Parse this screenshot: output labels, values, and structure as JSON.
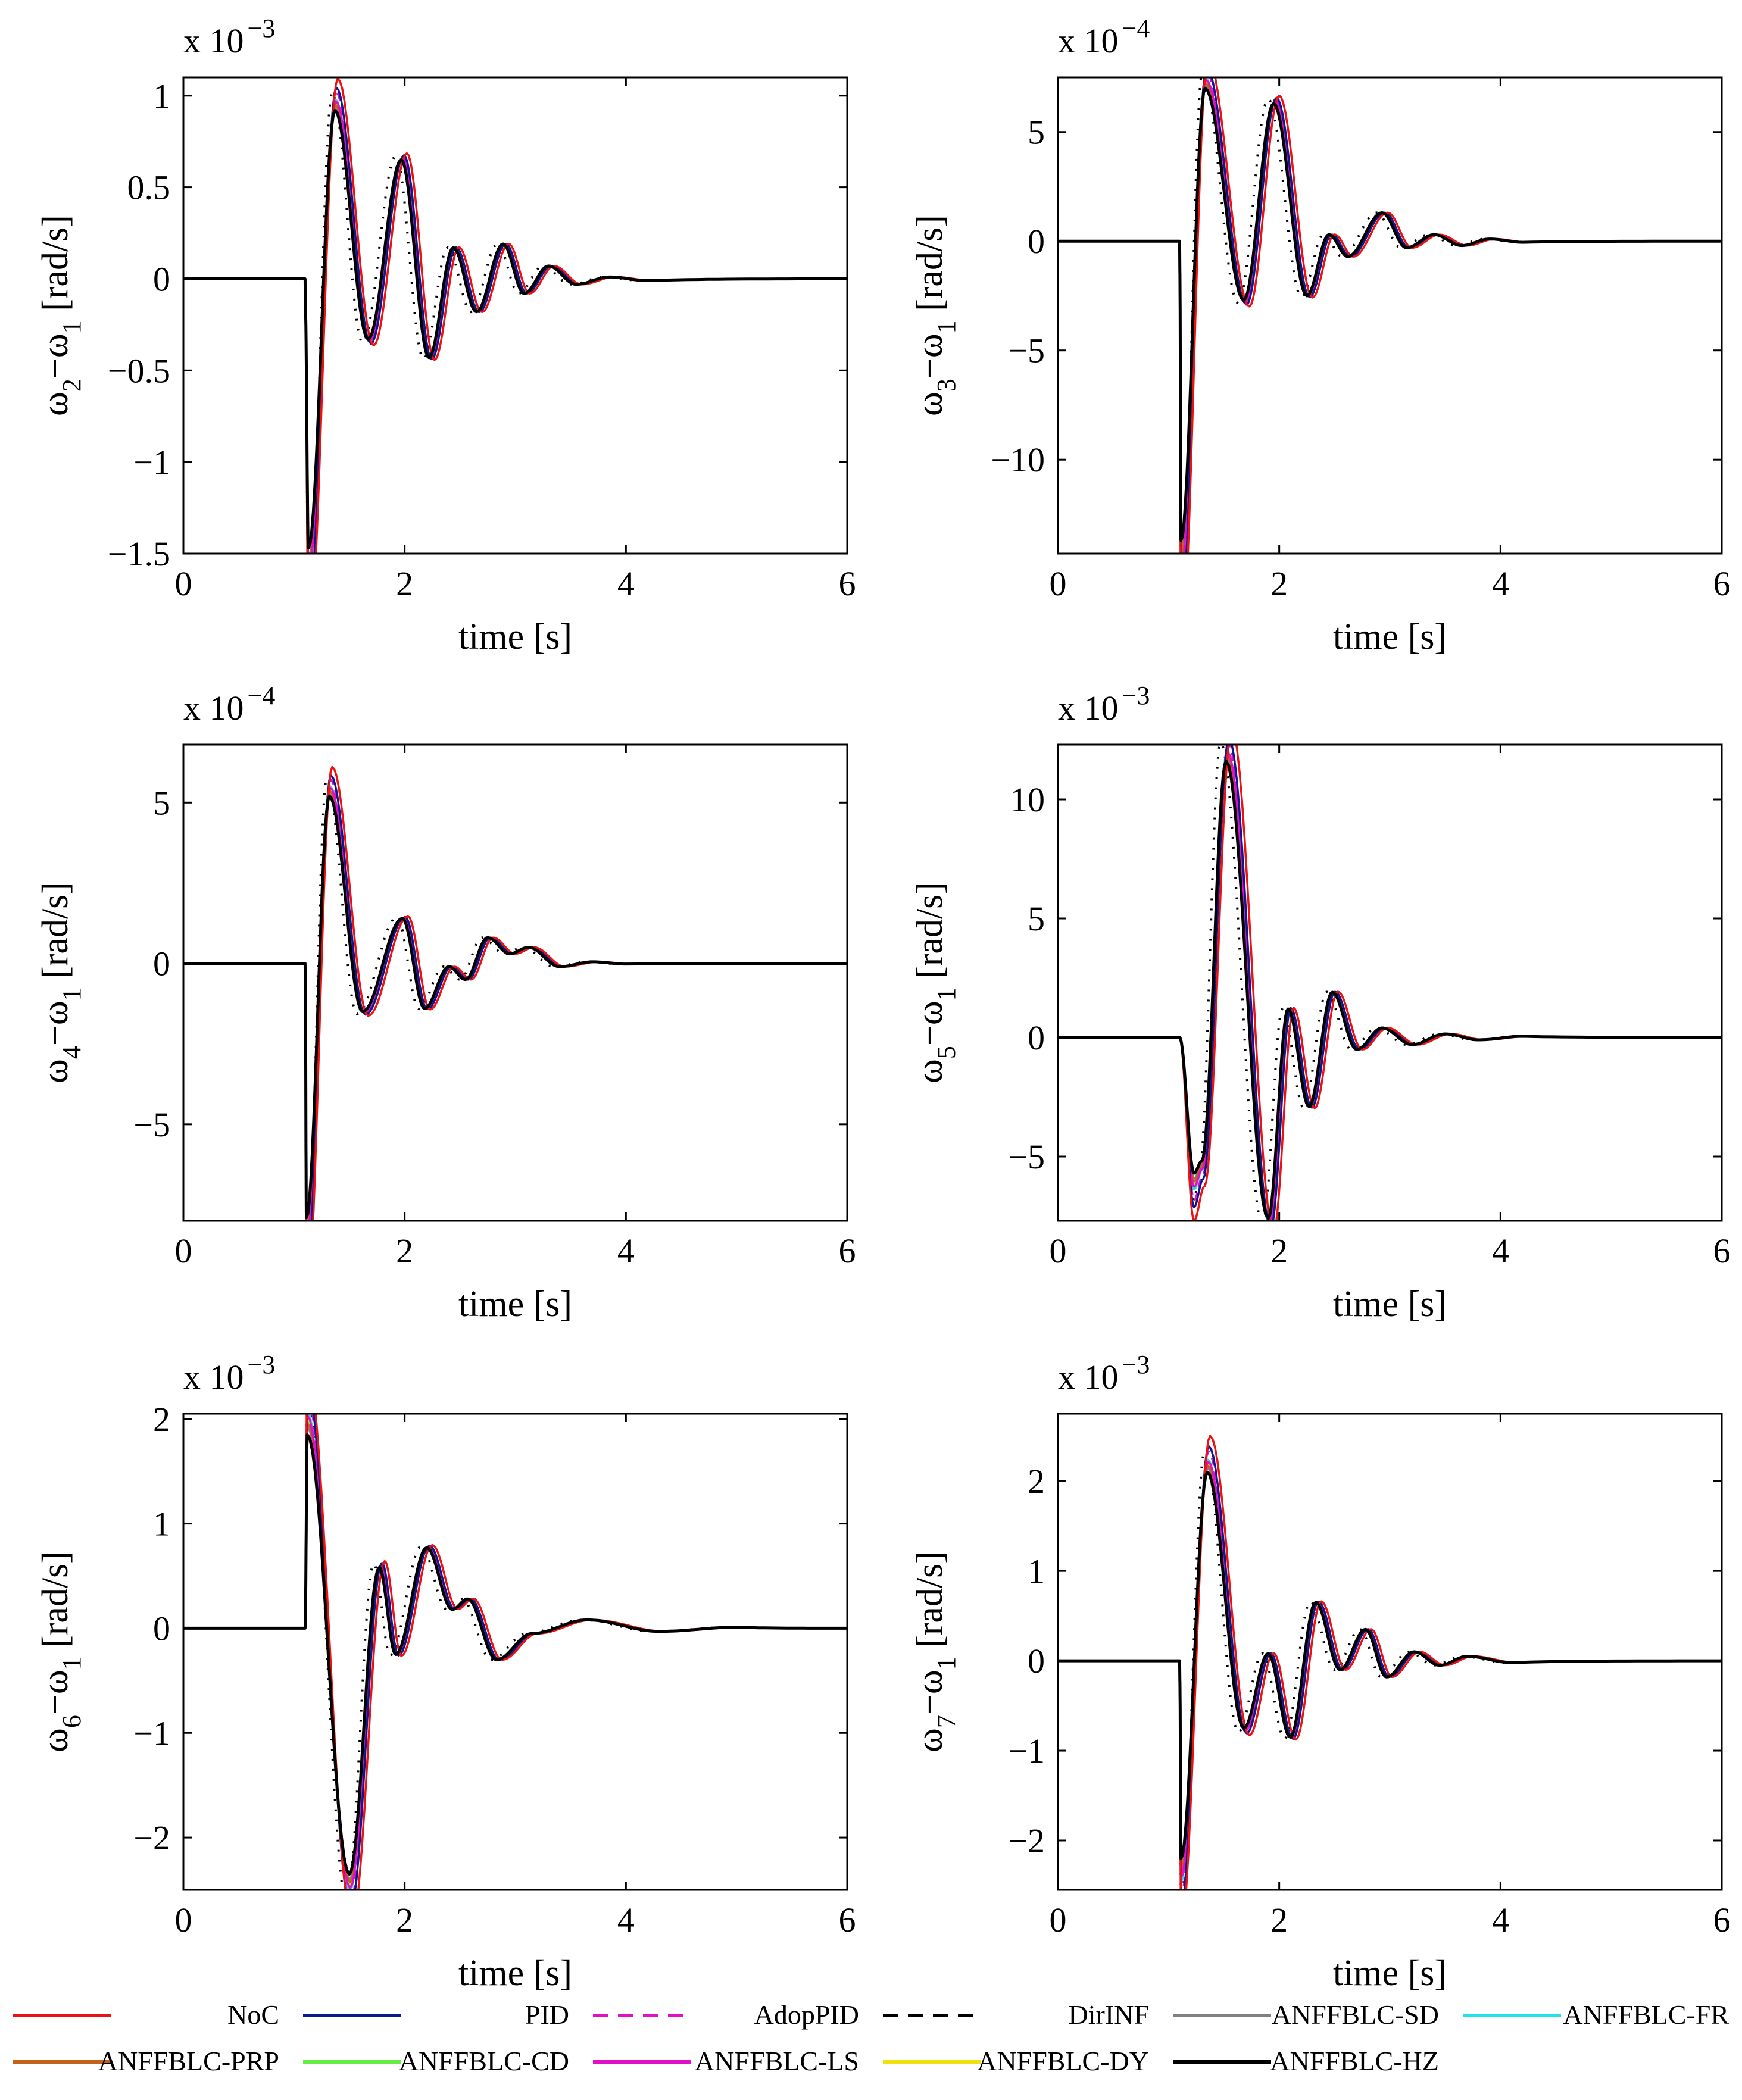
{
  "chart_data": {
    "type": "line",
    "legend": {
      "placement": "bottom",
      "entries": [
        {
          "name": "NoC",
          "color": "#ee1111",
          "dash": "solid"
        },
        {
          "name": "PID",
          "color": "#0a1a8c",
          "dash": "solid"
        },
        {
          "name": "AdopPID",
          "color": "#e010c8",
          "dash": "dashed"
        },
        {
          "name": "DirINF",
          "color": "#000000",
          "dash": "dashed"
        },
        {
          "name": "ANFFBLC-SD",
          "color": "#808080",
          "dash": "solid"
        },
        {
          "name": "ANFFBLC-FR",
          "color": "#22e0f0",
          "dash": "solid"
        },
        {
          "name": "ANFFBLC-PRP",
          "color": "#c0621a",
          "dash": "solid"
        },
        {
          "name": "ANFFBLC-CD",
          "color": "#66ee44",
          "dash": "solid"
        },
        {
          "name": "ANFFBLC-LS",
          "color": "#e010c8",
          "dash": "solid"
        },
        {
          "name": "ANFFBLC-DY",
          "color": "#f0e010",
          "dash": "solid"
        },
        {
          "name": "ANFFBLC-HZ",
          "color": "#000000",
          "dash": "solid"
        }
      ]
    },
    "panels": [
      {
        "id": "w2",
        "ylabel_main": "ω",
        "ylabel_sub_a": "2",
        "ylabel_mid": "−ω",
        "ylabel_sub_b": "1",
        "ylabel_unit": " [rad/s]",
        "xlabel": "time [s]",
        "exponent_base": "x 10",
        "exponent_power": "−3",
        "xlim": [
          0,
          6
        ],
        "ylim": [
          -1.5,
          1.1
        ],
        "xticks": [
          0,
          2,
          4,
          6
        ],
        "xtick_labels": [
          "0",
          "2",
          "4",
          "6"
        ],
        "yticks": [
          -1.5,
          -1,
          -0.5,
          0,
          0.5,
          1
        ],
        "ytick_labels": [
          "−1.5",
          "−1",
          "−0.5",
          "0",
          "0.5",
          "1"
        ],
        "fault_time": 1.1,
        "lead": 0.1,
        "damping": 0.62,
        "peaks": [
          [
            1.13,
            -1.47
          ],
          [
            1.37,
            0.92
          ],
          [
            1.67,
            -0.33
          ],
          [
            1.97,
            0.65
          ],
          [
            2.22,
            -0.43
          ],
          [
            2.44,
            0.17
          ],
          [
            2.65,
            -0.18
          ],
          [
            2.89,
            0.19
          ],
          [
            3.08,
            -0.08
          ],
          [
            3.3,
            0.07
          ],
          [
            3.55,
            -0.03
          ],
          [
            3.85,
            0.01
          ],
          [
            4.2,
            -0.01
          ]
        ]
      },
      {
        "id": "w3",
        "ylabel_main": "ω",
        "ylabel_sub_a": "3",
        "ylabel_mid": "−ω",
        "ylabel_sub_b": "1",
        "ylabel_unit": " [rad/s]",
        "xlabel": "time [s]",
        "exponent_base": "x 10",
        "exponent_power": "−4",
        "xlim": [
          0,
          6
        ],
        "ylim": [
          -14.3,
          7.5
        ],
        "xticks": [
          0,
          2,
          4,
          6
        ],
        "xtick_labels": [
          "0",
          "2",
          "4",
          "6"
        ],
        "yticks": [
          -10,
          -5,
          0,
          5
        ],
        "ytick_labels": [
          "−10",
          "−5",
          "0",
          "5"
        ],
        "fault_time": 1.1,
        "lead": 0.1,
        "damping": 0.6,
        "peaks": [
          [
            1.11,
            -13.7
          ],
          [
            1.33,
            7.0
          ],
          [
            1.68,
            -2.7
          ],
          [
            1.95,
            6.3
          ],
          [
            2.25,
            -2.5
          ],
          [
            2.45,
            0.3
          ],
          [
            2.62,
            -0.7
          ],
          [
            2.93,
            1.3
          ],
          [
            3.15,
            -0.3
          ],
          [
            3.4,
            0.3
          ],
          [
            3.65,
            -0.2
          ],
          [
            3.9,
            0.1
          ],
          [
            4.2,
            -0.05
          ]
        ]
      },
      {
        "id": "w4",
        "ylabel_main": "ω",
        "ylabel_sub_a": "4",
        "ylabel_mid": "−ω",
        "ylabel_sub_b": "1",
        "ylabel_unit": " [rad/s]",
        "xlabel": "time [s]",
        "exponent_base": "x 10",
        "exponent_power": "−4",
        "xlim": [
          0,
          6
        ],
        "ylim": [
          -8,
          6.8
        ],
        "xticks": [
          0,
          2,
          4,
          6
        ],
        "xtick_labels": [
          "0",
          "2",
          "4",
          "6"
        ],
        "yticks": [
          -5,
          0,
          5
        ],
        "ytick_labels": [
          "−5",
          "0",
          "5"
        ],
        "fault_time": 1.1,
        "lead": 0.1,
        "damping": 0.7,
        "peaks": [
          [
            1.11,
            -7.9
          ],
          [
            1.32,
            5.2
          ],
          [
            1.62,
            -1.5
          ],
          [
            1.98,
            1.4
          ],
          [
            2.18,
            -1.4
          ],
          [
            2.4,
            -0.1
          ],
          [
            2.55,
            -0.5
          ],
          [
            2.75,
            0.8
          ],
          [
            2.95,
            0.3
          ],
          [
            3.12,
            0.5
          ],
          [
            3.4,
            -0.1
          ],
          [
            3.7,
            0.05
          ],
          [
            4.0,
            -0.02
          ]
        ]
      },
      {
        "id": "w5",
        "ylabel_main": "ω",
        "ylabel_sub_a": "5",
        "ylabel_mid": "−ω",
        "ylabel_sub_b": "1",
        "ylabel_unit": " [rad/s]",
        "xlabel": "time [s]",
        "exponent_base": "x 10",
        "exponent_power": "−3",
        "xlim": [
          0,
          6
        ],
        "ylim": [
          -7.7,
          12.3
        ],
        "xticks": [
          0,
          2,
          4,
          6
        ],
        "xtick_labels": [
          "0",
          "2",
          "4",
          "6"
        ],
        "yticks": [
          -5,
          0,
          5,
          10
        ],
        "ytick_labels": [
          "−5",
          "0",
          "5",
          "10"
        ],
        "fault_time": 1.1,
        "lead": 0.0,
        "damping": 0.55,
        "peaks": [
          [
            1.23,
            -5.7
          ],
          [
            1.3,
            -5.2
          ],
          [
            1.52,
            11.6
          ],
          [
            1.9,
            -7.6
          ],
          [
            2.08,
            1.2
          ],
          [
            2.27,
            -2.9
          ],
          [
            2.48,
            1.9
          ],
          [
            2.7,
            -0.5
          ],
          [
            2.93,
            0.4
          ],
          [
            3.2,
            -0.3
          ],
          [
            3.5,
            0.15
          ],
          [
            3.8,
            -0.1
          ],
          [
            4.2,
            0.05
          ]
        ]
      },
      {
        "id": "w6",
        "ylabel_main": "ω",
        "ylabel_sub_a": "6",
        "ylabel_mid": "−ω",
        "ylabel_sub_b": "1",
        "ylabel_unit": " [rad/s]",
        "xlabel": "time [s]",
        "exponent_base": "x 10",
        "exponent_power": "−3",
        "xlim": [
          0,
          6
        ],
        "ylim": [
          -2.5,
          2.05
        ],
        "xticks": [
          0,
          2,
          4,
          6
        ],
        "xtick_labels": [
          "0",
          "2",
          "4",
          "6"
        ],
        "yticks": [
          -2,
          -1,
          0,
          1,
          2
        ],
        "ytick_labels": [
          "−2",
          "−1",
          "0",
          "1",
          "2"
        ],
        "fault_time": 1.1,
        "lead": 0.0,
        "damping": 0.6,
        "peaks": [
          [
            1.12,
            1.85
          ],
          [
            1.5,
            -2.35
          ],
          [
            1.77,
            0.58
          ],
          [
            1.92,
            -0.25
          ],
          [
            2.2,
            0.77
          ],
          [
            2.43,
            0.18
          ],
          [
            2.57,
            0.28
          ],
          [
            2.83,
            -0.3
          ],
          [
            3.15,
            -0.05
          ],
          [
            3.65,
            0.08
          ],
          [
            4.3,
            -0.03
          ],
          [
            5.0,
            0.01
          ]
        ]
      },
      {
        "id": "w7",
        "ylabel_main": "ω",
        "ylabel_sub_a": "7",
        "ylabel_mid": "−ω",
        "ylabel_sub_b": "1",
        "ylabel_unit": " [rad/s]",
        "xlabel": "time [s]",
        "exponent_base": "x 10",
        "exponent_power": "−3",
        "xlim": [
          0,
          6
        ],
        "ylim": [
          -2.55,
          2.75
        ],
        "xticks": [
          0,
          2,
          4,
          6
        ],
        "xtick_labels": [
          "0",
          "2",
          "4",
          "6"
        ],
        "yticks": [
          -2,
          -1,
          0,
          1,
          2
        ],
        "ytick_labels": [
          "−2",
          "−1",
          "0",
          "1",
          "2"
        ],
        "fault_time": 1.1,
        "lead": 0.1,
        "damping": 0.6,
        "peaks": [
          [
            1.11,
            -2.2
          ],
          [
            1.35,
            2.1
          ],
          [
            1.68,
            -0.75
          ],
          [
            1.9,
            0.08
          ],
          [
            2.1,
            -0.85
          ],
          [
            2.33,
            0.65
          ],
          [
            2.55,
            -0.1
          ],
          [
            2.78,
            0.35
          ],
          [
            2.97,
            -0.18
          ],
          [
            3.22,
            0.1
          ],
          [
            3.45,
            -0.05
          ],
          [
            3.7,
            0.05
          ],
          [
            4.1,
            -0.02
          ]
        ]
      }
    ]
  }
}
